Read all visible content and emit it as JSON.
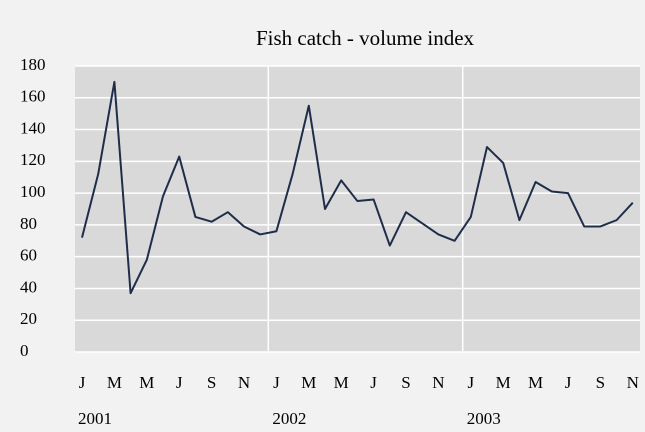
{
  "chart_data": {
    "type": "line",
    "title": "Fish catch - volume index",
    "categories": [
      "J",
      null,
      "M",
      null,
      "M",
      null,
      "J",
      null,
      "S",
      null,
      "N",
      null,
      "J",
      null,
      "M",
      null,
      "M",
      null,
      "J",
      null,
      "S",
      null,
      "N",
      null,
      "J",
      null,
      "M",
      null,
      "M",
      null,
      "J",
      null,
      "S",
      null,
      "N"
    ],
    "year_labels": [
      "2001",
      "2002",
      "2003"
    ],
    "series": [
      {
        "name": "Fish catch",
        "color": "#1f2d4a",
        "values": [
          72,
          112,
          170,
          37,
          58,
          98,
          123,
          85,
          82,
          88,
          79,
          74,
          76,
          112,
          155,
          90,
          108,
          95,
          96,
          67,
          88,
          81,
          74,
          70,
          85,
          129,
          119,
          83,
          107,
          101,
          100,
          79,
          79,
          83,
          94
        ]
      }
    ],
    "ylim": [
      0,
      180
    ],
    "yticks": [
      0,
      20,
      40,
      60,
      80,
      100,
      120,
      140,
      160,
      180
    ],
    "grid": true
  }
}
